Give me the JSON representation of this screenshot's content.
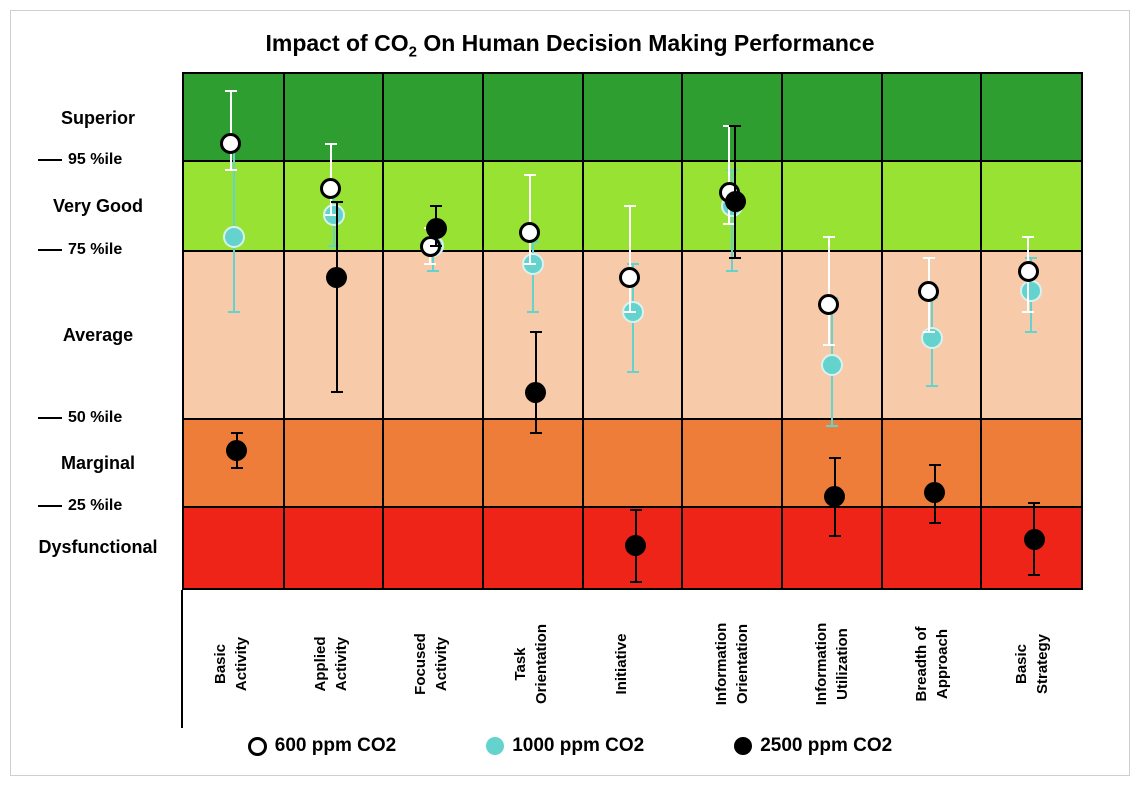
{
  "title": {
    "pre": "Impact of CO",
    "sub": "2",
    "post": " On Human Decision Making Performance"
  },
  "chart_data": {
    "type": "scatter",
    "title": "Impact of CO2 On Human Decision Making Performance",
    "categories": [
      "Basic Activity",
      "Applied Activity",
      "Focused Activity",
      "Task Orientation",
      "Initiative",
      "Information Orientation",
      "Information Utilization",
      "Breadth of Approach",
      "Basic Strategy"
    ],
    "y_axis": {
      "unit": "percentile",
      "range": [
        0,
        100
      ],
      "bands": [
        {
          "label": "Superior",
          "from": 95,
          "to": 100,
          "color": "#2e9e30",
          "height_frac": 0.17
        },
        {
          "label": "Very Good",
          "from": 75,
          "to": 95,
          "color": "#97e232",
          "height_frac": 0.174
        },
        {
          "label": "Average",
          "from": 50,
          "to": 75,
          "color": "#f7cbaa",
          "height_frac": 0.328
        },
        {
          "label": "Marginal",
          "from": 25,
          "to": 50,
          "color": "#ef7d3a",
          "height_frac": 0.17
        },
        {
          "label": "Dysfunctional",
          "from": 0,
          "to": 25,
          "color": "#ee2418",
          "height_frac": 0.158
        }
      ],
      "ticks": [
        {
          "label": "95 %ile",
          "value": 95
        },
        {
          "label": "75 %ile",
          "value": 75
        },
        {
          "label": "50 %ile",
          "value": 50
        },
        {
          "label": "25 %ile",
          "value": 25
        }
      ]
    },
    "series": [
      {
        "name": "600 ppm CO2",
        "marker": "open-circle",
        "marker_color": "#ffffff",
        "outline_color": "#000000",
        "values": [
          96,
          89,
          76,
          79,
          71,
          88,
          67,
          69,
          72
        ],
        "error_high": [
          99,
          96,
          80,
          92,
          85,
          97,
          78,
          74,
          78
        ],
        "error_low": [
          93,
          83,
          73,
          73,
          66,
          81,
          61,
          63,
          66
        ]
      },
      {
        "name": "1000 ppm CO2",
        "marker": "filled-circle",
        "marker_color": "#64d3cd",
        "outline_color": "#d8f2f0",
        "values": [
          78,
          83,
          76,
          73,
          66,
          85,
          58,
          62,
          69
        ],
        "error_high": [
          96,
          90,
          79,
          77,
          73,
          93,
          68,
          68,
          74
        ],
        "error_low": [
          66,
          76,
          72,
          66,
          57,
          72,
          48,
          55,
          63
        ]
      },
      {
        "name": "2500 ppm CO2",
        "marker": "filled-circle",
        "marker_color": "#000000",
        "outline_color": "none",
        "values": [
          41,
          71,
          80,
          54,
          13,
          86,
          28,
          29,
          15
        ],
        "error_high": [
          46,
          86,
          85,
          63,
          24,
          97,
          39,
          37,
          26
        ],
        "error_low": [
          36,
          54,
          76,
          46,
          2,
          74,
          16,
          20,
          4
        ]
      }
    ],
    "legend_position": "bottom",
    "grid": "vertical column separators and band boundary lines"
  }
}
